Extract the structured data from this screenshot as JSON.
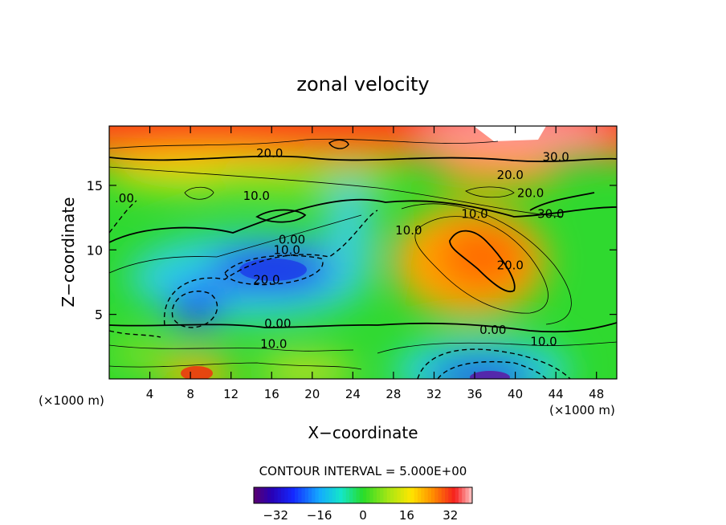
{
  "chart_data": {
    "type": "contour",
    "title": "zonal velocity",
    "xlabel": "X−coordinate",
    "ylabel": "Z−coordinate",
    "x_unit_left": "(×1000 m)",
    "x_unit_right": "(×1000 m)",
    "xlim": [
      0,
      50
    ],
    "ylim": [
      0,
      19.6
    ],
    "x_ticks": [
      "4",
      "8",
      "12",
      "16",
      "20",
      "24",
      "28",
      "32",
      "36",
      "40",
      "44",
      "48"
    ],
    "x_tick_values": [
      4,
      8,
      12,
      16,
      20,
      24,
      28,
      32,
      36,
      40,
      44,
      48
    ],
    "y_ticks": [
      "5",
      "10",
      "15"
    ],
    "y_tick_values": [
      5,
      10,
      15
    ],
    "contour_interval_text": "CONTOUR INTERVAL = 5.000E+00",
    "colorbar": {
      "range": [
        -40,
        40
      ],
      "ticks": [
        "−32",
        "−16",
        "0",
        "16",
        "32"
      ],
      "tick_values": [
        -32,
        -16,
        0,
        16,
        32
      ]
    },
    "contour_labels": [
      {
        "text": "20.0",
        "x": 15.8,
        "y": 17.5
      },
      {
        "text": "30.0",
        "x": 44.0,
        "y": 17.2
      },
      {
        "text": "20.0",
        "x": 39.5,
        "y": 15.8
      },
      {
        "text": "20.0",
        "x": 41.5,
        "y": 14.4
      },
      {
        "text": "10.0",
        "x": 14.5,
        "y": 14.2
      },
      {
        "text": "10.0",
        "x": 36.0,
        "y": 12.8
      },
      {
        "text": "30.0",
        "x": 43.5,
        "y": 12.8
      },
      {
        "text": "10.0",
        "x": 29.5,
        "y": 11.5
      },
      {
        "text": "0.00",
        "x": 18.0,
        "y": 10.8
      },
      {
        "text": "10.0",
        "x": 17.5,
        "y": 10.0
      },
      {
        "text": "20.0",
        "x": 39.5,
        "y": 8.8
      },
      {
        "text": "20.0",
        "x": 15.5,
        "y": 7.7
      },
      {
        "text": "0.00",
        "x": 16.6,
        "y": 4.3
      },
      {
        "text": "0.00",
        "x": 37.8,
        "y": 3.8
      },
      {
        "text": "10.0",
        "x": 16.2,
        "y": 2.7
      },
      {
        "text": "10.0",
        "x": 42.8,
        "y": 2.9
      },
      {
        "text": ".00",
        "x": 1.5,
        "y": 14.0
      }
    ]
  }
}
